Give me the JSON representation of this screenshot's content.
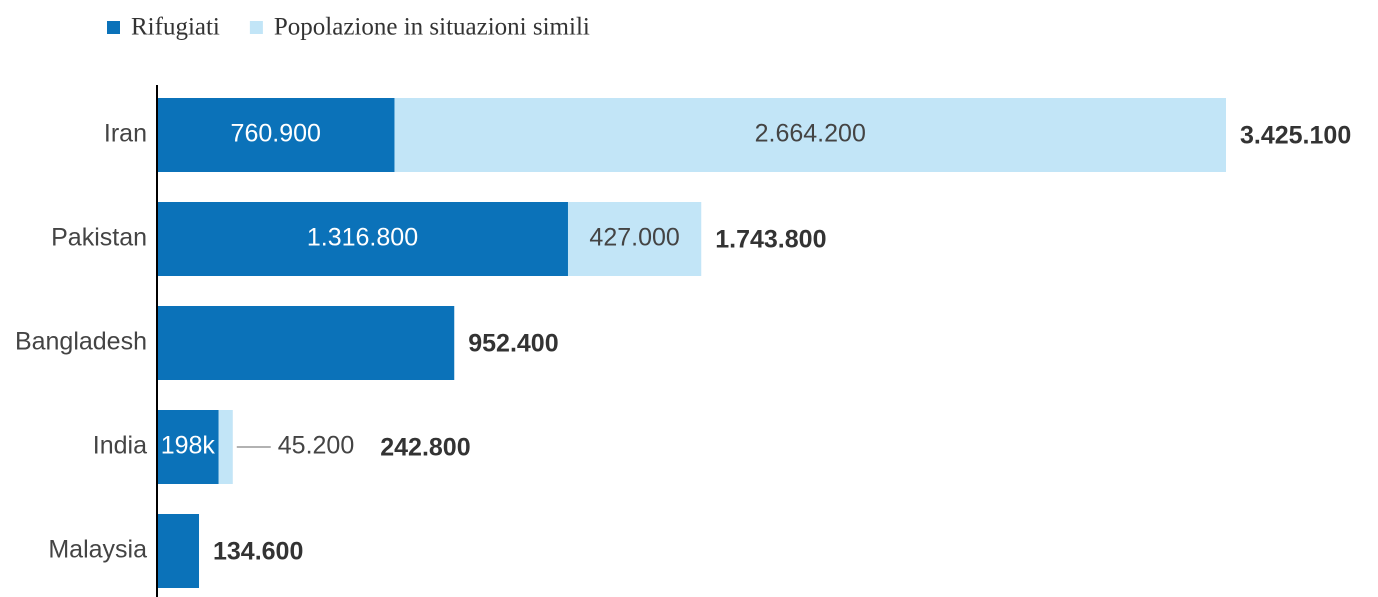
{
  "chart_data": {
    "type": "stacked-bar-horizontal",
    "categories": [
      "Iran",
      "Pakistan",
      "Bangladesh",
      "India",
      "Malaysia"
    ],
    "series": [
      {
        "name": "Rifugiati",
        "color": "#0b72b9",
        "values": [
          760900,
          1316800,
          952400,
          197600,
          134600
        ],
        "value_labels": [
          "760.900",
          "1.316.800",
          null,
          "198k",
          null
        ]
      },
      {
        "name": "Popolazione in situazioni simili",
        "color": "#c2e5f7",
        "values": [
          2664200,
          427000,
          null,
          45200,
          null
        ],
        "value_labels": [
          "2.664.200",
          "427.000",
          null,
          "45.200",
          null
        ]
      }
    ],
    "totals": [
      {
        "value": 3425100,
        "label": "3.425.100"
      },
      {
        "value": 1743800,
        "label": "1.743.800"
      },
      {
        "value": 952400,
        "label": "952.400"
      },
      {
        "value": 242800,
        "label": "242.800"
      },
      {
        "value": 134600,
        "label": "134.600"
      }
    ],
    "xlim": [
      0,
      3500000
    ]
  }
}
